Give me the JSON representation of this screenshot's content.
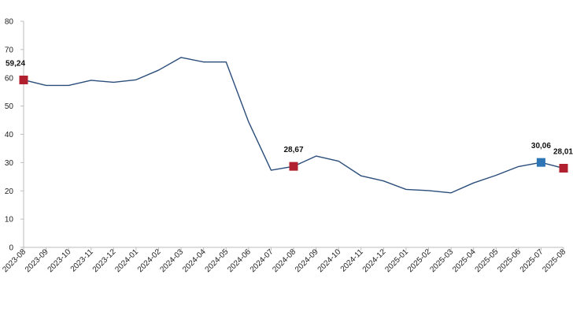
{
  "chart_data": {
    "type": "line",
    "title": "",
    "xlabel": "",
    "ylabel": "",
    "ylim": [
      0,
      80
    ],
    "yticks": [
      0,
      10,
      20,
      30,
      40,
      50,
      60,
      70,
      80
    ],
    "grid": false,
    "legend": "none",
    "categories": [
      "2023-08",
      "2023-09",
      "2023-10",
      "2023-11",
      "2023-12",
      "2024-01",
      "2024-02",
      "2024-03",
      "2024-04",
      "2024-05",
      "2024-06",
      "2024-07",
      "2024-08",
      "2024-09",
      "2024-10",
      "2024-11",
      "2024-12",
      "2025-01",
      "2025-02",
      "2025-03",
      "2025-04",
      "2025-05",
      "2025-06",
      "2025-07",
      "2025-08"
    ],
    "series": [
      {
        "color": "#2a4d7a",
        "values": [
          59.24,
          57.3,
          57.3,
          59.1,
          58.4,
          59.3,
          62.7,
          67.2,
          65.6,
          65.6,
          44.4,
          27.3,
          28.67,
          32.3,
          30.5,
          25.3,
          23.5,
          20.5,
          20.1,
          19.3,
          22.8,
          25.5,
          28.6,
          30.06,
          28.01
        ]
      }
    ],
    "markers": [
      {
        "category": "2023-08",
        "value": 59.24,
        "label": "59,24",
        "color": "#b0202e"
      },
      {
        "category": "2024-08",
        "value": 28.67,
        "label": "28,67",
        "color": "#b0202e"
      },
      {
        "category": "2025-07",
        "value": 30.06,
        "label": "30,06",
        "color": "#2e75b6"
      },
      {
        "category": "2025-08",
        "value": 28.01,
        "label": "28,01",
        "color": "#b0202e"
      }
    ],
    "axis_color": "#bdbdbd"
  }
}
